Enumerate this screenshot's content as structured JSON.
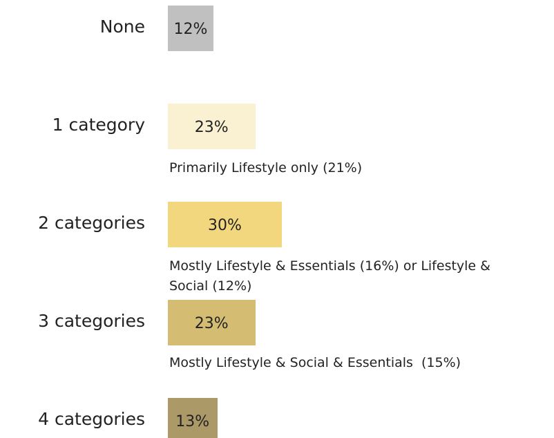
{
  "chart_data": {
    "type": "bar",
    "orientation": "horizontal",
    "categories": [
      "None",
      "1 category",
      "2 categories",
      "3 categories",
      "4 categories"
    ],
    "values": [
      12,
      23,
      30,
      23,
      13
    ],
    "value_labels": [
      "12%",
      "23%",
      "30%",
      "23%",
      "13%"
    ],
    "colors": [
      "#c0c0c0",
      "#faf0d2",
      "#f2d77e",
      "#d4bd72",
      "#ab9a68"
    ],
    "annotations": [
      null,
      "Primarily Lifestyle only (21%)",
      "Mostly Lifestyle & Essentials (16%) or Lifestyle & Social (12%)",
      "Mostly Lifestyle & Social & Essentials  (15%)",
      null
    ]
  }
}
